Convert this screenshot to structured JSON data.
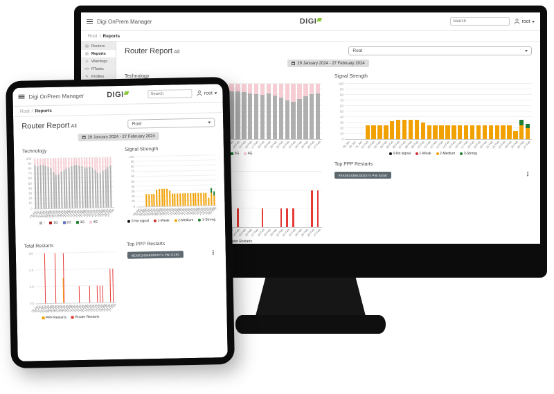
{
  "app": {
    "window_title": "Digi OnPrem Manager",
    "brand": "DIGI",
    "search_placeholder": "Search",
    "user": "root",
    "sidebar": {
      "items": [
        {
          "label": "Routers",
          "icon": "router-icon",
          "active": false
        },
        {
          "label": "Reports",
          "icon": "reports-icon",
          "active": true
        },
        {
          "label": "Warnings",
          "icon": "warning-icon",
          "active": false
        },
        {
          "label": "RTasks",
          "icon": "code-icon",
          "active": false
        },
        {
          "label": "Profiles",
          "icon": "profiles-icon",
          "active": false
        },
        {
          "label": "Firmware",
          "icon": "firmware-icon",
          "active": false
        }
      ]
    },
    "breadcrumb": {
      "root": "Root",
      "separator": "/",
      "current": "Reports"
    },
    "page_title": "Router Report",
    "page_title_suffix": "All",
    "group_select_value": "Root",
    "date_range": "29 January 2024 - 27 February 2024",
    "top_ppp": {
      "title": "Top PPP Restarts",
      "badge": "#EX50143663302274 PNI EX50"
    }
  },
  "colors": {
    "brand_green": "#8DC63F",
    "bar_gray": "#AFAFAF",
    "bar_pink": "#F6CDD3",
    "bar_orange": "#F2A104",
    "bar_green": "#1E7E34",
    "bar_red": "#E53935",
    "legend_dark_red": "#A52019",
    "legend_blue": "#5C6BC0",
    "legend_black": "#111111",
    "badge_bg": "#5E686F"
  },
  "chart_data": [
    {
      "id": "technology",
      "type": "bar",
      "stacked": true,
      "grouped": false,
      "title": "Technology",
      "categories": [
        "29 Jan",
        "30 Jan",
        "31 Jan",
        "01 Feb",
        "02 Feb",
        "03 Feb",
        "04 Feb",
        "05 Feb",
        "06 Feb",
        "07 Feb",
        "08 Feb",
        "09 Feb",
        "10 Feb",
        "11 Feb",
        "12 Feb",
        "13 Feb",
        "14 Feb",
        "15 Feb",
        "16 Feb",
        "17 Feb",
        "18 Feb",
        "19 Feb",
        "20 Feb",
        "21 Feb",
        "22 Feb",
        "23 Feb",
        "24 Feb",
        "25 Feb",
        "26 Feb",
        "27 Feb"
      ],
      "series": [
        {
          "name": "-",
          "color": "#AFAFAF",
          "values": [
            87,
            85,
            87,
            88,
            86,
            84,
            80,
            72,
            66,
            68,
            73,
            76,
            79,
            81,
            84,
            86,
            86,
            85,
            83,
            81,
            80,
            82,
            79,
            75,
            70,
            68,
            73,
            77,
            81,
            83
          ]
        },
        {
          "name": "1G",
          "color": "#A52019",
          "values": [
            0,
            0,
            0,
            0,
            0,
            0,
            0,
            0,
            0,
            0,
            0,
            0,
            0,
            0,
            0,
            0,
            0,
            0,
            0,
            0,
            0,
            0,
            0,
            0,
            0,
            0,
            0,
            0,
            0,
            0
          ]
        },
        {
          "name": "2G",
          "color": "#5C6BC0",
          "values": [
            0,
            0,
            0,
            0,
            0,
            0,
            0,
            0,
            0,
            0,
            0,
            0,
            0,
            0,
            0,
            0,
            0,
            0,
            0,
            0,
            0,
            0,
            0,
            0,
            0,
            0,
            0,
            0,
            0,
            0
          ]
        },
        {
          "name": "3G",
          "color": "#1E7E34",
          "values": [
            0,
            0,
            0,
            0,
            0,
            0,
            0,
            0,
            0,
            0,
            0,
            0,
            0,
            0,
            0,
            0,
            0,
            0,
            0,
            0,
            0,
            0,
            0,
            0,
            0,
            0,
            0,
            0,
            0,
            0
          ]
        },
        {
          "name": "4G",
          "color": "#F6CDD3",
          "values": [
            13,
            15,
            13,
            12,
            14,
            16,
            20,
            28,
            34,
            32,
            27,
            24,
            21,
            19,
            16,
            14,
            14,
            15,
            17,
            19,
            20,
            18,
            21,
            25,
            30,
            32,
            27,
            23,
            19,
            17
          ]
        }
      ],
      "ylim": [
        0,
        100
      ],
      "ytick_values": [
        0,
        10,
        20,
        30,
        40,
        50,
        60,
        70,
        80,
        90,
        100
      ],
      "ytick_labels": [
        "0",
        "10",
        "20",
        "30",
        "40",
        "50",
        "60",
        "70",
        "80",
        "90",
        "100"
      ],
      "legend_marker": "square",
      "legend_position": "bottom",
      "grid": true,
      "xlabel": "",
      "ylabel": ""
    },
    {
      "id": "signal_strength",
      "type": "bar",
      "stacked": true,
      "grouped": false,
      "title": "Signal Strength",
      "categories": [
        "29 Jan",
        "30 Jan",
        "31 Jan",
        "01 Feb",
        "02 Feb",
        "03 Feb",
        "04 Feb",
        "05 Feb",
        "06 Feb",
        "07 Feb",
        "08 Feb",
        "09 Feb",
        "10 Feb",
        "11 Feb",
        "12 Feb",
        "13 Feb",
        "14 Feb",
        "15 Feb",
        "16 Feb",
        "17 Feb",
        "18 Feb",
        "19 Feb",
        "20 Feb",
        "21 Feb",
        "22 Feb",
        "23 Feb",
        "24 Feb",
        "25 Feb",
        "26 Feb",
        "27 Feb"
      ],
      "series": [
        {
          "name": "0-No signal",
          "color": "#111111",
          "values": [
            0,
            0,
            0,
            0,
            0,
            0,
            0,
            0,
            0,
            0,
            0,
            0,
            0,
            0,
            0,
            0,
            0,
            0,
            0,
            0,
            0,
            0,
            0,
            0,
            0,
            0,
            0,
            0,
            0,
            0
          ]
        },
        {
          "name": "1-Weak",
          "color": "#D32F2F",
          "values": [
            0,
            0,
            0,
            0,
            0,
            0,
            0,
            0,
            0,
            0,
            0,
            0,
            0,
            0,
            0,
            0,
            0,
            0,
            0,
            0,
            0,
            0,
            0,
            0,
            0,
            0,
            0,
            0,
            0,
            0
          ]
        },
        {
          "name": "2-Medium",
          "color": "#F2A104",
          "values": [
            0,
            0,
            0,
            25,
            25,
            25,
            25,
            33,
            35,
            35,
            35,
            35,
            30,
            25,
            25,
            25,
            25,
            25,
            25,
            25,
            25,
            25,
            25,
            25,
            25,
            25,
            25,
            15,
            25,
            20
          ]
        },
        {
          "name": "3-Strong",
          "color": "#1E7E34",
          "values": [
            0,
            0,
            0,
            0,
            0,
            0,
            0,
            0,
            0,
            0,
            0,
            0,
            0,
            0,
            0,
            0,
            0,
            0,
            0,
            0,
            0,
            0,
            0,
            0,
            0,
            0,
            0,
            0,
            10,
            8
          ]
        }
      ],
      "ylim": [
        0,
        100
      ],
      "ytick_values": [
        0,
        10,
        20,
        30,
        40,
        50,
        60,
        70,
        80,
        90,
        100
      ],
      "ytick_labels": [
        "0",
        "10",
        "20",
        "30",
        "40",
        "50",
        "60",
        "70",
        "80",
        "90",
        "100"
      ],
      "legend_marker": "dot",
      "legend_position": "bottom",
      "grid": true,
      "xlabel": "",
      "ylabel": ""
    },
    {
      "id": "total_restarts",
      "type": "bar",
      "stacked": false,
      "grouped": true,
      "title": "Total Restarts",
      "categories": [
        "29 Jan",
        "30 Jan",
        "31 Jan",
        "01 Feb",
        "02 Feb",
        "03 Feb",
        "04 Feb",
        "05 Feb",
        "06 Feb",
        "07 Feb",
        "08 Feb",
        "09 Feb",
        "10 Feb",
        "11 Feb",
        "12 Feb",
        "13 Feb",
        "14 Feb",
        "15 Feb",
        "16 Feb",
        "17 Feb",
        "18 Feb",
        "19 Feb",
        "20 Feb",
        "21 Feb",
        "22 Feb",
        "23 Feb",
        "24 Feb",
        "25 Feb",
        "26 Feb",
        "27 Feb"
      ],
      "series": [
        {
          "name": "PPP Restarts",
          "color": "#F2A104",
          "values": [
            0,
            0,
            0,
            0,
            0,
            0,
            0,
            0,
            0,
            0,
            1.5,
            0,
            0,
            0,
            0,
            0,
            0,
            0,
            0,
            0,
            0,
            0,
            0,
            0,
            0,
            0,
            0,
            0,
            0,
            0
          ]
        },
        {
          "name": "Router Restarts",
          "color": "#E53935",
          "values": [
            0,
            0,
            0,
            3,
            0,
            0,
            0,
            3,
            0,
            0,
            3,
            0,
            0,
            0,
            0,
            0,
            1,
            0,
            0,
            0,
            1,
            0,
            0,
            1,
            1,
            1,
            0,
            0,
            2,
            2
          ]
        }
      ],
      "ylim": [
        0,
        3
      ],
      "ytick_values": [
        0,
        1,
        2,
        3
      ],
      "ytick_labels": [
        "0.0",
        "1.0",
        "2.0",
        "3.0"
      ],
      "legend_marker": "square",
      "legend_position": "bottom",
      "grid": true,
      "xlabel": "",
      "ylabel": ""
    }
  ]
}
